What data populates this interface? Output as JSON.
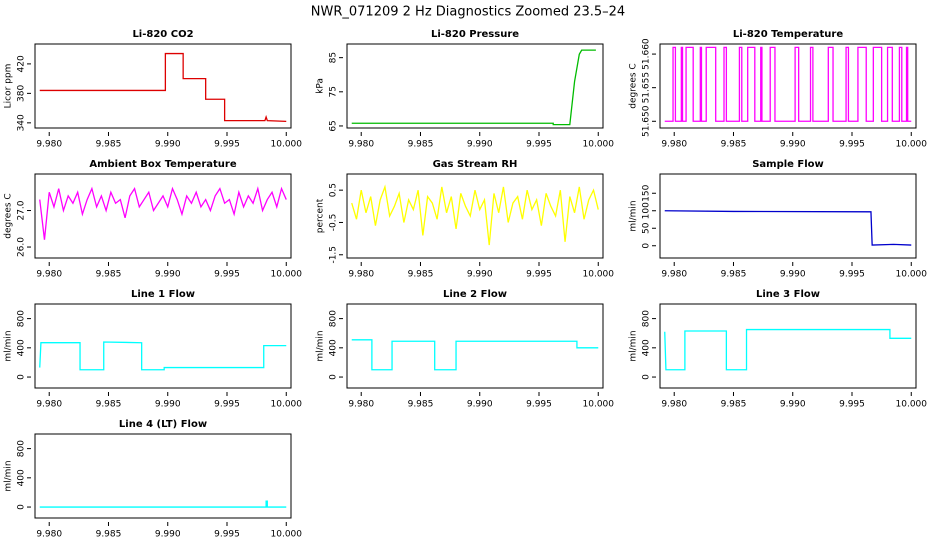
{
  "title": "NWR_071209  2 Hz Diagnostics Zoomed 23.5–24",
  "chart_data": [
    {
      "type": "line",
      "title": "Li-820 CO2",
      "ylabel": "Licor ppm",
      "color": "#dd0000",
      "x": [
        9.9792,
        9.9898,
        9.9898,
        9.9913,
        9.9913,
        9.9932,
        9.9932,
        9.9948,
        9.9948,
        9.9982,
        9.9983,
        9.9984,
        10.0
      ],
      "values": [
        384,
        384,
        434,
        434,
        400,
        400,
        372,
        372,
        343,
        343,
        348,
        343,
        342
      ],
      "xlim": [
        9.9788,
        10.0004
      ],
      "xticks": [
        {
          "value": 9.98,
          "label": "9.980"
        },
        {
          "value": 9.985,
          "label": "9.985"
        },
        {
          "value": 9.99,
          "label": "9.990"
        },
        {
          "value": 9.995,
          "label": "9.995"
        },
        {
          "value": 10.0,
          "label": "10.000"
        }
      ],
      "ylim": [
        333,
        447
      ],
      "yticks": [
        340,
        380,
        420
      ]
    },
    {
      "type": "line",
      "title": "Li-820 Pressure",
      "ylabel": "kPa",
      "color": "#00bb00",
      "x": [
        9.9792,
        9.9962,
        9.9962,
        9.9976,
        9.998,
        9.9984,
        9.9986,
        9.9998
      ],
      "values": [
        65.8,
        65.8,
        65.4,
        65.4,
        78,
        86,
        87.2,
        87.2
      ],
      "xlim": [
        9.9788,
        10.0004
      ],
      "xticks": [
        {
          "value": 9.98,
          "label": "9.980"
        },
        {
          "value": 9.985,
          "label": "9.985"
        },
        {
          "value": 9.99,
          "label": "9.990"
        },
        {
          "value": 9.995,
          "label": "9.995"
        },
        {
          "value": 10.0,
          "label": "10.000"
        }
      ],
      "ylim": [
        64.4,
        89
      ],
      "yticks": [
        65,
        75,
        85
      ]
    },
    {
      "type": "line",
      "title": "Li-820 Temperature",
      "ylabel": "degrees C",
      "color": "#ff00ff",
      "x": [
        9.9792,
        9.9799,
        9.9799,
        9.9801,
        9.9801,
        9.9806,
        9.9806,
        9.9807,
        9.9807,
        9.981,
        9.981,
        9.9816,
        9.9816,
        9.9822,
        9.9822,
        9.9823,
        9.9823,
        9.9827,
        9.9827,
        9.9835,
        9.9835,
        9.9842,
        9.9842,
        9.9844,
        9.9844,
        9.9855,
        9.9855,
        9.9857,
        9.9857,
        9.9862,
        9.9862,
        9.9868,
        9.9868,
        9.9873,
        9.9873,
        9.9874,
        9.9874,
        9.9881,
        9.9881,
        9.9885,
        9.9885,
        9.9902,
        9.9902,
        9.9905,
        9.9905,
        9.9915,
        9.9915,
        9.9917,
        9.9917,
        9.993,
        9.993,
        9.9934,
        9.9934,
        9.9945,
        9.9945,
        9.9947,
        9.9947,
        9.9955,
        9.9955,
        9.9962,
        9.9962,
        9.9968,
        9.9968,
        9.9975,
        9.9975,
        9.998,
        9.998,
        9.9984,
        9.9984,
        9.999,
        9.999,
        9.9992,
        9.9992,
        9.9996,
        9.9996,
        9.9997,
        9.9997,
        10.0
      ],
      "values": [
        51.65,
        51.65,
        51.661,
        51.661,
        51.65,
        51.65,
        51.661,
        51.661,
        51.65,
        51.65,
        51.661,
        51.661,
        51.65,
        51.65,
        51.661,
        51.661,
        51.65,
        51.65,
        51.661,
        51.661,
        51.65,
        51.65,
        51.661,
        51.661,
        51.65,
        51.65,
        51.661,
        51.661,
        51.65,
        51.65,
        51.661,
        51.661,
        51.65,
        51.65,
        51.661,
        51.661,
        51.65,
        51.65,
        51.661,
        51.661,
        51.65,
        51.65,
        51.661,
        51.661,
        51.65,
        51.65,
        51.661,
        51.661,
        51.65,
        51.65,
        51.661,
        51.661,
        51.65,
        51.65,
        51.661,
        51.661,
        51.65,
        51.65,
        51.661,
        51.661,
        51.65,
        51.65,
        51.661,
        51.661,
        51.65,
        51.65,
        51.661,
        51.661,
        51.65,
        51.65,
        51.661,
        51.661,
        51.65,
        51.65,
        51.661,
        51.661,
        51.65,
        51.65
      ],
      "xlim": [
        9.9788,
        10.0004
      ],
      "xticks": [
        {
          "value": 9.98,
          "label": "9.980"
        },
        {
          "value": 9.985,
          "label": "9.985"
        },
        {
          "value": 9.99,
          "label": "9.990"
        },
        {
          "value": 9.995,
          "label": "9.995"
        },
        {
          "value": 10.0,
          "label": "10.000"
        }
      ],
      "ylim": [
        51.649,
        51.6615
      ],
      "yticks": [
        {
          "value": 51.65,
          "label": "51.650"
        },
        {
          "value": 51.655,
          "label": "51.655"
        },
        {
          "value": 51.66,
          "label": "51.660"
        }
      ]
    },
    {
      "type": "line",
      "title": "Ambient Box Temperature",
      "ylabel": "degrees C",
      "color": "#ff00ff",
      "x": [
        9.9792,
        9.9796,
        9.98,
        9.9804,
        9.9808,
        9.9812,
        9.9816,
        9.982,
        9.9824,
        9.9828,
        9.9832,
        9.9836,
        9.984,
        9.9844,
        9.9848,
        9.9852,
        9.9856,
        9.986,
        9.9864,
        9.9868,
        9.9872,
        9.9876,
        9.988,
        9.9884,
        9.9888,
        9.9892,
        9.9896,
        9.99,
        9.9904,
        9.9908,
        9.9912,
        9.9916,
        9.992,
        9.9924,
        9.9928,
        9.9932,
        9.9936,
        9.994,
        9.9944,
        9.9948,
        9.9952,
        9.9956,
        9.996,
        9.9964,
        9.9968,
        9.9972,
        9.9976,
        9.998,
        9.9984,
        9.9988,
        9.9992,
        9.9996,
        10.0
      ],
      "values": [
        27.3,
        26.2,
        27.5,
        27.1,
        27.6,
        27.0,
        27.4,
        27.2,
        27.5,
        26.9,
        27.3,
        27.6,
        27.1,
        27.4,
        27.0,
        27.5,
        27.2,
        27.3,
        26.8,
        27.4,
        27.6,
        27.1,
        27.3,
        27.5,
        27.0,
        27.2,
        27.4,
        27.1,
        27.6,
        27.3,
        26.9,
        27.4,
        27.2,
        27.5,
        27.1,
        27.3,
        27.0,
        27.4,
        27.6,
        27.2,
        27.3,
        26.9,
        27.5,
        27.1,
        27.4,
        27.2,
        27.6,
        27.0,
        27.3,
        27.5,
        27.1,
        27.6,
        27.3
      ],
      "xlim": [
        9.9788,
        10.0004
      ],
      "xticks": [
        {
          "value": 9.98,
          "label": "9.980"
        },
        {
          "value": 9.985,
          "label": "9.985"
        },
        {
          "value": 9.99,
          "label": "9.990"
        },
        {
          "value": 9.995,
          "label": "9.995"
        },
        {
          "value": 10.0,
          "label": "10.000"
        }
      ],
      "ylim": [
        25.7,
        28.0
      ],
      "yticks": [
        {
          "value": 26,
          "label": "26.0"
        },
        {
          "value": 27,
          "label": "27.0"
        }
      ]
    },
    {
      "type": "line",
      "title": "Gas Stream RH",
      "ylabel": "percent",
      "color": "#ffff00",
      "x": [
        9.9792,
        9.9796,
        9.98,
        9.9804,
        9.9808,
        9.9812,
        9.9816,
        9.982,
        9.9824,
        9.9828,
        9.9832,
        9.9836,
        9.984,
        9.9844,
        9.9848,
        9.9852,
        9.9856,
        9.986,
        9.9864,
        9.9868,
        9.9872,
        9.9876,
        9.988,
        9.9884,
        9.9888,
        9.9892,
        9.9896,
        9.99,
        9.9904,
        9.9908,
        9.9912,
        9.9916,
        9.992,
        9.9924,
        9.9928,
        9.9932,
        9.9936,
        9.994,
        9.9944,
        9.9948,
        9.9952,
        9.9956,
        9.996,
        9.9964,
        9.9968,
        9.9972,
        9.9976,
        9.998,
        9.9984,
        9.9988,
        9.9992,
        9.9996,
        10.0
      ],
      "values": [
        0.1,
        -0.4,
        0.5,
        -0.2,
        0.3,
        -0.6,
        0.2,
        0.6,
        -0.3,
        0.0,
        0.4,
        -0.5,
        0.2,
        -0.1,
        0.5,
        -0.9,
        0.3,
        0.1,
        -0.4,
        0.6,
        -0.2,
        0.3,
        -0.7,
        0.4,
        0.0,
        -0.3,
        0.5,
        -0.1,
        0.2,
        -1.2,
        0.4,
        -0.2,
        0.6,
        -0.5,
        0.1,
        0.3,
        -0.4,
        0.5,
        -0.1,
        0.2,
        -0.6,
        0.4,
        0.0,
        -0.3,
        0.5,
        -1.1,
        0.3,
        -0.2,
        0.6,
        -0.4,
        0.2,
        0.5,
        -0.1
      ],
      "xlim": [
        9.9788,
        10.0004
      ],
      "xticks": [
        {
          "value": 9.98,
          "label": "9.980"
        },
        {
          "value": 9.985,
          "label": "9.985"
        },
        {
          "value": 9.99,
          "label": "9.990"
        },
        {
          "value": 9.995,
          "label": "9.995"
        },
        {
          "value": 10.0,
          "label": "10.000"
        }
      ],
      "ylim": [
        -1.6,
        1.0
      ],
      "yticks": [
        -1.5,
        -0.5,
        0.5
      ]
    },
    {
      "type": "line",
      "title": "Sample Flow",
      "ylabel": "ml/min",
      "color": "#0000cc",
      "x": [
        9.9792,
        9.985,
        9.9966,
        9.9967,
        9.9985,
        10.0
      ],
      "values": [
        100,
        98,
        97,
        2,
        4,
        2
      ],
      "xlim": [
        9.9788,
        10.0004
      ],
      "xticks": [
        {
          "value": 9.98,
          "label": "9.980"
        },
        {
          "value": 9.985,
          "label": "9.985"
        },
        {
          "value": 9.99,
          "label": "9.990"
        },
        {
          "value": 9.995,
          "label": "9.995"
        },
        {
          "value": 10.0,
          "label": "10.000"
        }
      ],
      "ylim": [
        -35,
        205
      ],
      "yticks": [
        0,
        50,
        100,
        150
      ]
    },
    {
      "type": "line",
      "title": "Line 1 Flow",
      "ylabel": "ml/min",
      "color": "#00ffff",
      "x": [
        9.9792,
        9.9793,
        9.9826,
        9.9826,
        9.9846,
        9.9846,
        9.9878,
        9.9878,
        9.9897,
        9.9897,
        9.9981,
        9.9981,
        10.0
      ],
      "values": [
        130,
        470,
        470,
        100,
        100,
        480,
        470,
        100,
        100,
        130,
        130,
        430,
        430
      ],
      "xlim": [
        9.9788,
        10.0004
      ],
      "xticks": [
        {
          "value": 9.98,
          "label": "9.980"
        },
        {
          "value": 9.985,
          "label": "9.985"
        },
        {
          "value": 9.99,
          "label": "9.990"
        },
        {
          "value": 9.995,
          "label": "9.995"
        },
        {
          "value": 10.0,
          "label": "10.000"
        }
      ],
      "ylim": [
        -150,
        1000
      ],
      "yticks": [
        0,
        400,
        800
      ]
    },
    {
      "type": "line",
      "title": "Line 2 Flow",
      "ylabel": "ml/min",
      "color": "#00ffff",
      "x": [
        9.9792,
        9.9809,
        9.9809,
        9.9826,
        9.9826,
        9.9862,
        9.9862,
        9.988,
        9.988,
        9.9982,
        9.9982,
        10.0
      ],
      "values": [
        510,
        510,
        100,
        100,
        490,
        490,
        100,
        100,
        490,
        490,
        400,
        400
      ],
      "xlim": [
        9.9788,
        10.0004
      ],
      "xticks": [
        {
          "value": 9.98,
          "label": "9.980"
        },
        {
          "value": 9.985,
          "label": "9.985"
        },
        {
          "value": 9.99,
          "label": "9.990"
        },
        {
          "value": 9.995,
          "label": "9.995"
        },
        {
          "value": 10.0,
          "label": "10.000"
        }
      ],
      "ylim": [
        -150,
        1000
      ],
      "yticks": [
        0,
        400,
        800
      ]
    },
    {
      "type": "line",
      "title": "Line 3 Flow",
      "ylabel": "ml/min",
      "color": "#00ffff",
      "x": [
        9.9792,
        9.9793,
        9.9809,
        9.9809,
        9.9844,
        9.9844,
        9.9861,
        9.9861,
        9.9982,
        9.9982,
        10.0
      ],
      "values": [
        620,
        100,
        100,
        630,
        630,
        100,
        100,
        650,
        650,
        530,
        530
      ],
      "xlim": [
        9.9788,
        10.0004
      ],
      "xticks": [
        {
          "value": 9.98,
          "label": "9.980"
        },
        {
          "value": 9.985,
          "label": "9.985"
        },
        {
          "value": 9.99,
          "label": "9.990"
        },
        {
          "value": 9.995,
          "label": "9.995"
        },
        {
          "value": 10.0,
          "label": "10.000"
        }
      ],
      "ylim": [
        -150,
        1000
      ],
      "yticks": [
        0,
        400,
        800
      ]
    },
    {
      "type": "line",
      "title": "Line 4 (LT) Flow",
      "ylabel": "ml/min",
      "color": "#00ffff",
      "x": [
        9.9792,
        9.9983,
        9.9983,
        9.9984,
        9.9984,
        10.0
      ],
      "values": [
        0,
        0,
        80,
        80,
        0,
        0
      ],
      "xlim": [
        9.9788,
        10.0004
      ],
      "xticks": [
        {
          "value": 9.98,
          "label": "9.980"
        },
        {
          "value": 9.985,
          "label": "9.985"
        },
        {
          "value": 9.99,
          "label": "9.990"
        },
        {
          "value": 9.995,
          "label": "9.995"
        },
        {
          "value": 10.0,
          "label": "10.000"
        }
      ],
      "ylim": [
        -150,
        1000
      ],
      "yticks": [
        0,
        400,
        800
      ]
    }
  ]
}
